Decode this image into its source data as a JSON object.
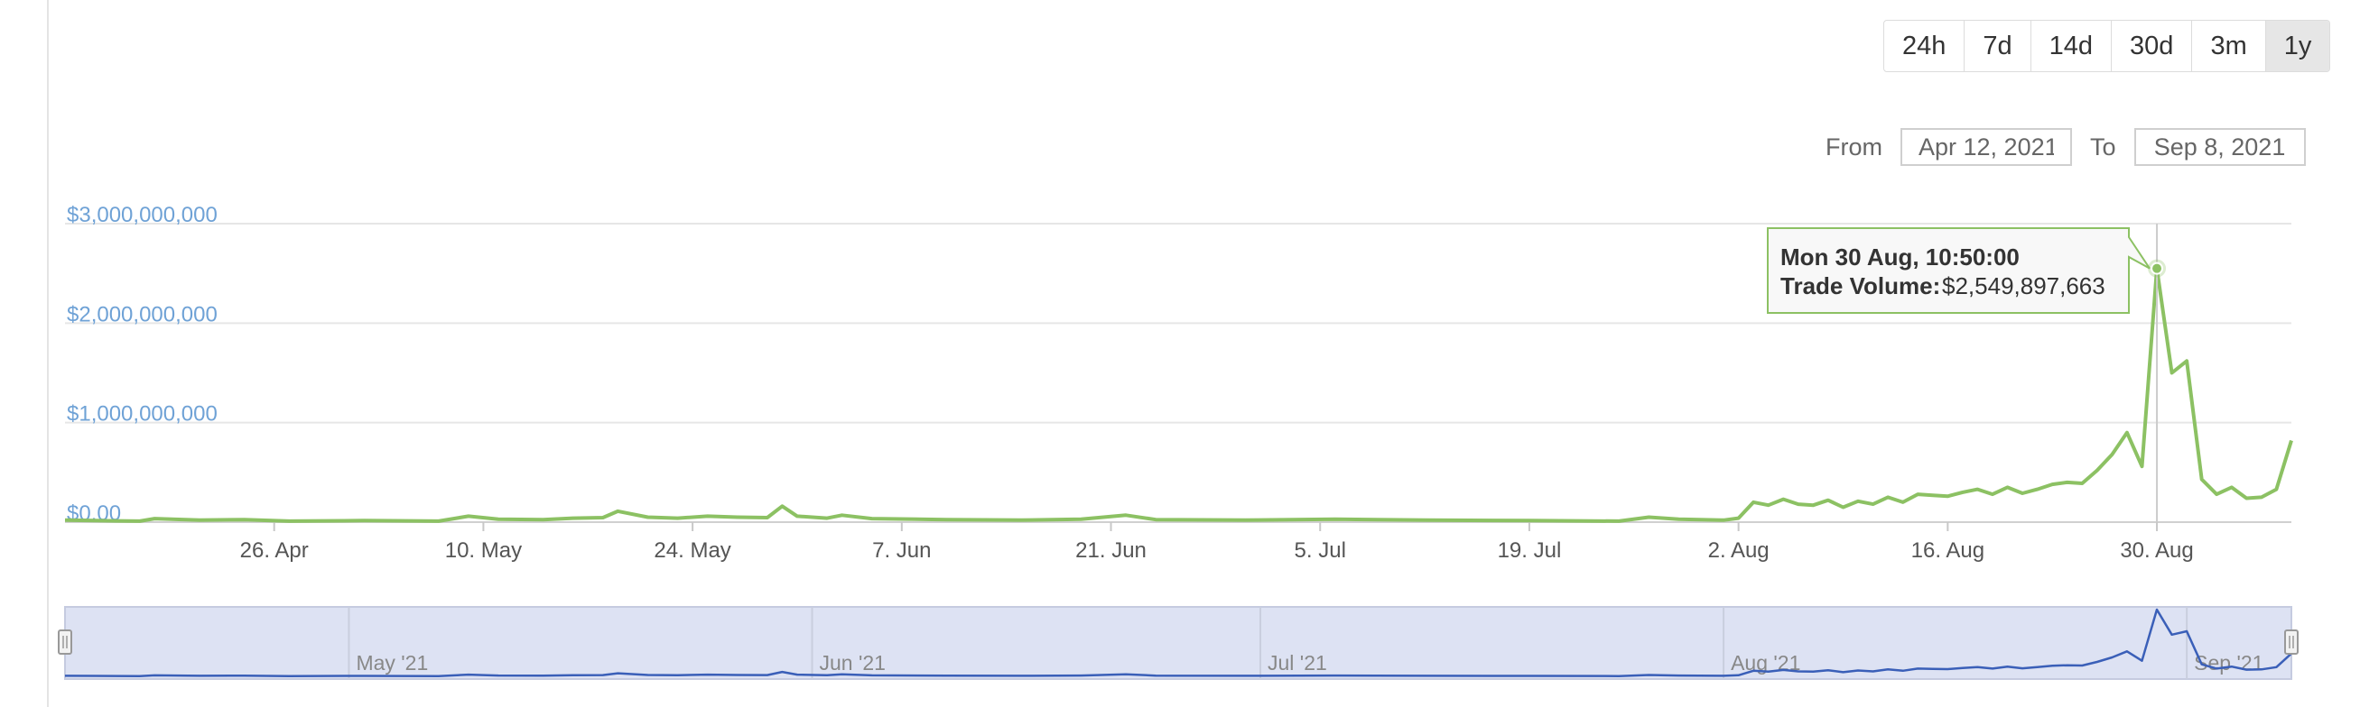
{
  "range_selector": {
    "buttons": [
      "24h",
      "7d",
      "14d",
      "30d",
      "3m",
      "1y"
    ],
    "active": "1y"
  },
  "date_range": {
    "from_label": "From",
    "from_value": "Apr 12, 2021",
    "to_label": "To",
    "to_value": "Sep 8, 2021"
  },
  "colors": {
    "line": "#8cc163",
    "y_label": "#6fa2d6",
    "navigator_fill": "#dde2f3",
    "navigator_line": "#3a5fb8"
  },
  "chart_data": {
    "type": "line",
    "x_start": "2021-04-12",
    "x_end": "2021-09-08",
    "x_tick_labels": [
      "26. Apr",
      "10. May",
      "24. May",
      "7. Jun",
      "21. Jun",
      "5. Jul",
      "19. Jul",
      "2. Aug",
      "16. Aug",
      "30. Aug"
    ],
    "x_tick_dates": [
      "2021-04-26",
      "2021-05-10",
      "2021-05-24",
      "2021-06-07",
      "2021-06-21",
      "2021-07-05",
      "2021-07-19",
      "2021-08-02",
      "2021-08-16",
      "2021-08-30"
    ],
    "y_tick_labels": [
      "$0.00",
      "$1,000,000,000",
      "$2,000,000,000",
      "$3,000,000,000"
    ],
    "y_ticks": [
      0,
      1000000000,
      2000000000,
      3000000000
    ],
    "ylim": [
      0,
      3000000000
    ],
    "grid": true,
    "series": [
      {
        "points": [
          [
            "2021-04-12",
            20000000
          ],
          [
            "2021-04-14",
            15000000
          ],
          [
            "2021-04-17",
            10000000
          ],
          [
            "2021-04-18",
            35000000
          ],
          [
            "2021-04-21",
            20000000
          ],
          [
            "2021-04-24",
            25000000
          ],
          [
            "2021-04-27",
            10000000
          ],
          [
            "2021-05-02",
            15000000
          ],
          [
            "2021-05-07",
            10000000
          ],
          [
            "2021-05-09",
            60000000
          ],
          [
            "2021-05-11",
            30000000
          ],
          [
            "2021-05-14",
            25000000
          ],
          [
            "2021-05-16",
            40000000
          ],
          [
            "2021-05-18",
            45000000
          ],
          [
            "2021-05-19",
            110000000
          ],
          [
            "2021-05-21",
            50000000
          ],
          [
            "2021-05-23",
            40000000
          ],
          [
            "2021-05-25",
            60000000
          ],
          [
            "2021-05-27",
            50000000
          ],
          [
            "2021-05-29",
            45000000
          ],
          [
            "2021-05-30",
            160000000
          ],
          [
            "2021-05-31",
            60000000
          ],
          [
            "2021-06-02",
            40000000
          ],
          [
            "2021-06-03",
            70000000
          ],
          [
            "2021-06-05",
            35000000
          ],
          [
            "2021-06-10",
            25000000
          ],
          [
            "2021-06-15",
            20000000
          ],
          [
            "2021-06-19",
            30000000
          ],
          [
            "2021-06-22",
            70000000
          ],
          [
            "2021-06-24",
            25000000
          ],
          [
            "2021-06-30",
            20000000
          ],
          [
            "2021-07-06",
            30000000
          ],
          [
            "2021-07-12",
            20000000
          ],
          [
            "2021-07-19",
            15000000
          ],
          [
            "2021-07-25",
            10000000
          ],
          [
            "2021-07-27",
            50000000
          ],
          [
            "2021-07-29",
            30000000
          ],
          [
            "2021-08-01",
            20000000
          ],
          [
            "2021-08-02",
            40000000
          ],
          [
            "2021-08-03",
            200000000
          ],
          [
            "2021-08-04",
            170000000
          ],
          [
            "2021-08-05",
            230000000
          ],
          [
            "2021-08-06",
            180000000
          ],
          [
            "2021-08-07",
            170000000
          ],
          [
            "2021-08-08",
            220000000
          ],
          [
            "2021-08-09",
            150000000
          ],
          [
            "2021-08-10",
            210000000
          ],
          [
            "2021-08-11",
            180000000
          ],
          [
            "2021-08-12",
            250000000
          ],
          [
            "2021-08-13",
            200000000
          ],
          [
            "2021-08-14",
            280000000
          ],
          [
            "2021-08-15",
            270000000
          ],
          [
            "2021-08-16",
            260000000
          ],
          [
            "2021-08-17",
            300000000
          ],
          [
            "2021-08-18",
            330000000
          ],
          [
            "2021-08-19",
            280000000
          ],
          [
            "2021-08-20",
            350000000
          ],
          [
            "2021-08-21",
            290000000
          ],
          [
            "2021-08-22",
            330000000
          ],
          [
            "2021-08-23",
            380000000
          ],
          [
            "2021-08-24",
            400000000
          ],
          [
            "2021-08-25",
            390000000
          ],
          [
            "2021-08-26",
            520000000
          ],
          [
            "2021-08-27",
            680000000
          ],
          [
            "2021-08-28",
            900000000
          ],
          [
            "2021-08-29",
            560000000
          ],
          [
            "2021-08-30",
            2549897663
          ],
          [
            "2021-08-31",
            1500000000
          ],
          [
            "2021-09-01",
            1620000000
          ],
          [
            "2021-09-02",
            430000000
          ],
          [
            "2021-09-03",
            280000000
          ],
          [
            "2021-09-04",
            350000000
          ],
          [
            "2021-09-05",
            240000000
          ],
          [
            "2021-09-06",
            250000000
          ],
          [
            "2021-09-07",
            330000000
          ],
          [
            "2021-09-08",
            820000000
          ]
        ]
      }
    ],
    "tooltip": {
      "date": "2021-08-30",
      "title": "Mon 30 Aug, 10:50:00",
      "label": "Trade Volume:",
      "value_text": "$2,549,897,663",
      "value": 2549897663
    },
    "navigator": {
      "month_labels": [
        "May '21",
        "Jun '21",
        "Jul '21",
        "Aug '21",
        "Sep '21"
      ],
      "month_dates": [
        "2021-05-01",
        "2021-06-01",
        "2021-07-01",
        "2021-08-01",
        "2021-09-01"
      ]
    }
  }
}
